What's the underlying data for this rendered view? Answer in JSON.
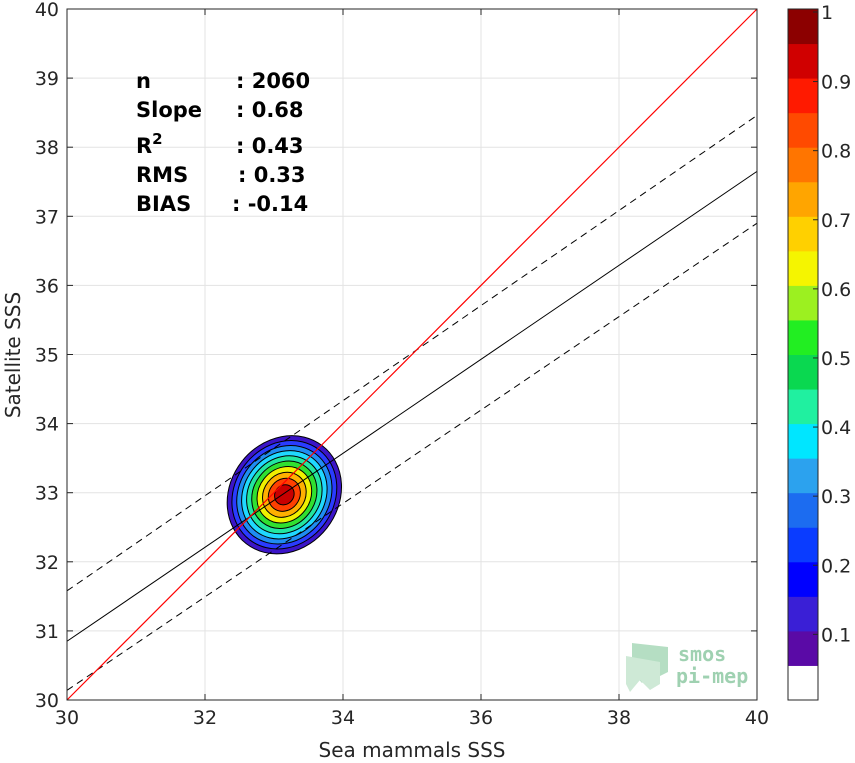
{
  "chart_data": {
    "type": "density-scatter",
    "xlabel": "Sea mammals SSS",
    "ylabel": "Satellite SSS",
    "xlim": [
      30,
      40
    ],
    "ylim": [
      30,
      40
    ],
    "xticks": [
      "30",
      "32",
      "34",
      "36",
      "38",
      "40"
    ],
    "yticks": [
      "30",
      "31",
      "32",
      "33",
      "34",
      "35",
      "36",
      "37",
      "38",
      "39",
      "40"
    ],
    "grid": true,
    "stats": [
      {
        "label": "n",
        "value": ": 2060"
      },
      {
        "label": "Slope",
        "value": ": 0.68"
      },
      {
        "label": "R",
        "sup": "2",
        "value": ": 0.43"
      },
      {
        "label": "RMS",
        "value": ": 0.33"
      },
      {
        "label": "BIAS",
        "value": ": -0.14"
      }
    ],
    "identity_line": {
      "slope": 1,
      "intercept": 0,
      "color": "#ff0000"
    },
    "fit_line": {
      "x": [
        30,
        40
      ],
      "y": [
        30.85,
        37.65
      ]
    },
    "band_upper": {
      "x": [
        30,
        40
      ],
      "y": [
        31.58,
        38.46
      ]
    },
    "band_lower": {
      "x": [
        30,
        40
      ],
      "y": [
        30.14,
        36.9
      ]
    },
    "density_center": {
      "x": 33.15,
      "y": 32.97
    },
    "density_levels": [
      0.05,
      0.15,
      0.25,
      0.35,
      0.45,
      0.55,
      0.65,
      0.75,
      0.85,
      0.95
    ],
    "colorbar": {
      "ticks": [
        "0.1",
        "0.2",
        "0.3",
        "0.4",
        "0.5",
        "0.6",
        "0.7",
        "0.8",
        "0.9",
        "1"
      ],
      "colors": [
        "#ffffff",
        "#5a0aa6",
        "#3a1fd6",
        "#0000ff",
        "#0a3cff",
        "#1c6cf0",
        "#2ca2ee",
        "#00e6ff",
        "#20f0a0",
        "#0ad850",
        "#22ee22",
        "#9cf020",
        "#f5f500",
        "#ffd000",
        "#ffa500",
        "#ff7500",
        "#ff4a00",
        "#ff1a00",
        "#d00000",
        "#8c0000"
      ]
    }
  },
  "logo": {
    "line1": "smos",
    "line2": "pi-mep"
  }
}
